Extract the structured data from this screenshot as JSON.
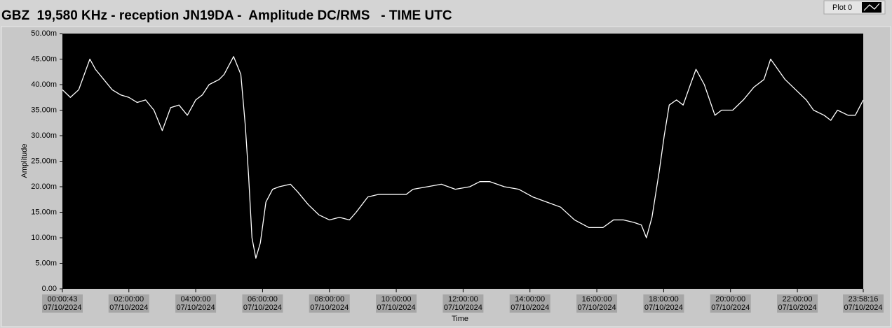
{
  "chart_data": {
    "type": "line",
    "title": "GBZ  19,580 KHz - reception JN19DA -  Amplitude DC/RMS   - TIME UTC",
    "x_label": "Time",
    "y_label": "Amplitude",
    "plot_background": "#000000",
    "grid": false,
    "legend": "top-right",
    "x": [
      "00:00:43",
      "00:15:00",
      "00:30:00",
      "00:45:00",
      "00:50:00",
      "01:00:00",
      "01:15:00",
      "01:30:00",
      "01:45:00",
      "02:00:00",
      "02:15:00",
      "02:30:00",
      "02:45:00",
      "03:00:00",
      "03:15:00",
      "03:30:00",
      "03:45:00",
      "04:00:00",
      "04:12:00",
      "04:24:00",
      "04:42:00",
      "04:51:00",
      "05:08:00",
      "05:21:00",
      "05:29:00",
      "05:35:00",
      "05:41:00",
      "05:48:00",
      "05:56:00",
      "06:06:00",
      "06:18:00",
      "06:30:00",
      "06:50:00",
      "07:03:00",
      "07:22:00",
      "07:41:00",
      "08:00:00",
      "08:18:00",
      "08:36:00",
      "08:48:00",
      "09:09:00",
      "09:28:00",
      "09:53:00",
      "10:18:00",
      "10:30:00",
      "10:56:00",
      "11:21:00",
      "11:46:00",
      "12:12:00",
      "12:30:00",
      "12:48:00",
      "13:14:00",
      "13:40:00",
      "14:05:00",
      "14:30:00",
      "14:55:00",
      "15:20:00",
      "15:46:00",
      "16:11:00",
      "16:30:00",
      "16:48:00",
      "17:07:00",
      "17:20:00",
      "17:29:00",
      "17:39:00",
      "17:52:00",
      "18:01:00",
      "18:10:00",
      "18:23:00",
      "18:35:00",
      "18:48:00",
      "18:58:00",
      "19:13:00",
      "19:32:00",
      "19:44:00",
      "20:04:00",
      "20:23:00",
      "20:42:00",
      "21:00:00",
      "21:12:00",
      "21:25:00",
      "21:38:00",
      "21:57:00",
      "22:16:00",
      "22:29:00",
      "22:48:00",
      "23:00:00",
      "23:12:00",
      "23:31:00",
      "23:44:00",
      "23:58:16"
    ],
    "series": [
      {
        "name": "Plot 0",
        "color": "#ffffff",
        "values": [
          0.039,
          0.0375,
          0.039,
          0.0435,
          0.045,
          0.043,
          0.041,
          0.039,
          0.038,
          0.0375,
          0.0365,
          0.037,
          0.035,
          0.031,
          0.0355,
          0.036,
          0.034,
          0.037,
          0.038,
          0.04,
          0.041,
          0.042,
          0.0455,
          0.042,
          0.032,
          0.022,
          0.01,
          0.006,
          0.009,
          0.017,
          0.0195,
          0.02,
          0.0205,
          0.019,
          0.0165,
          0.0145,
          0.0135,
          0.014,
          0.0135,
          0.015,
          0.018,
          0.0185,
          0.0185,
          0.0185,
          0.0195,
          0.02,
          0.0205,
          0.0195,
          0.02,
          0.021,
          0.021,
          0.02,
          0.0195,
          0.018,
          0.017,
          0.016,
          0.0135,
          0.012,
          0.012,
          0.0135,
          0.0135,
          0.013,
          0.0125,
          0.01,
          0.014,
          0.023,
          0.03,
          0.036,
          0.037,
          0.036,
          0.04,
          0.043,
          0.04,
          0.034,
          0.035,
          0.035,
          0.037,
          0.0395,
          0.041,
          0.045,
          0.043,
          0.041,
          0.039,
          0.037,
          0.035,
          0.034,
          0.033,
          0.035,
          0.034,
          0.034,
          0.037
        ]
      }
    ],
    "xlim": [
      "00:00:43",
      "23:58:16"
    ],
    "xticks": [
      {
        "time": "00:00:43",
        "date": "07/10/2024"
      },
      {
        "time": "02:00:00",
        "date": "07/10/2024"
      },
      {
        "time": "04:00:00",
        "date": "07/10/2024"
      },
      {
        "time": "06:00:00",
        "date": "07/10/2024"
      },
      {
        "time": "08:00:00",
        "date": "07/10/2024"
      },
      {
        "time": "10:00:00",
        "date": "07/10/2024"
      },
      {
        "time": "12:00:00",
        "date": "07/10/2024"
      },
      {
        "time": "14:00:00",
        "date": "07/10/2024"
      },
      {
        "time": "16:00:00",
        "date": "07/10/2024"
      },
      {
        "time": "18:00:00",
        "date": "07/10/2024"
      },
      {
        "time": "20:00:00",
        "date": "07/10/2024"
      },
      {
        "time": "22:00:00",
        "date": "07/10/2024"
      },
      {
        "time": "23:58:16",
        "date": "07/10/2024"
      }
    ],
    "ylim": [
      0,
      0.05
    ],
    "yticks": [
      {
        "value": 0,
        "label": "0.00"
      },
      {
        "value": 0.005,
        "label": "5.00m"
      },
      {
        "value": 0.01,
        "label": "10.00m"
      },
      {
        "value": 0.015,
        "label": "15.00m"
      },
      {
        "value": 0.02,
        "label": "20.00m"
      },
      {
        "value": 0.025,
        "label": "25.00m"
      },
      {
        "value": 0.03,
        "label": "30.00m"
      },
      {
        "value": 0.035,
        "label": "35.00m"
      },
      {
        "value": 0.04,
        "label": "40.00m"
      },
      {
        "value": 0.045,
        "label": "45.00m"
      },
      {
        "value": 0.05,
        "label": "50.00m"
      }
    ]
  }
}
